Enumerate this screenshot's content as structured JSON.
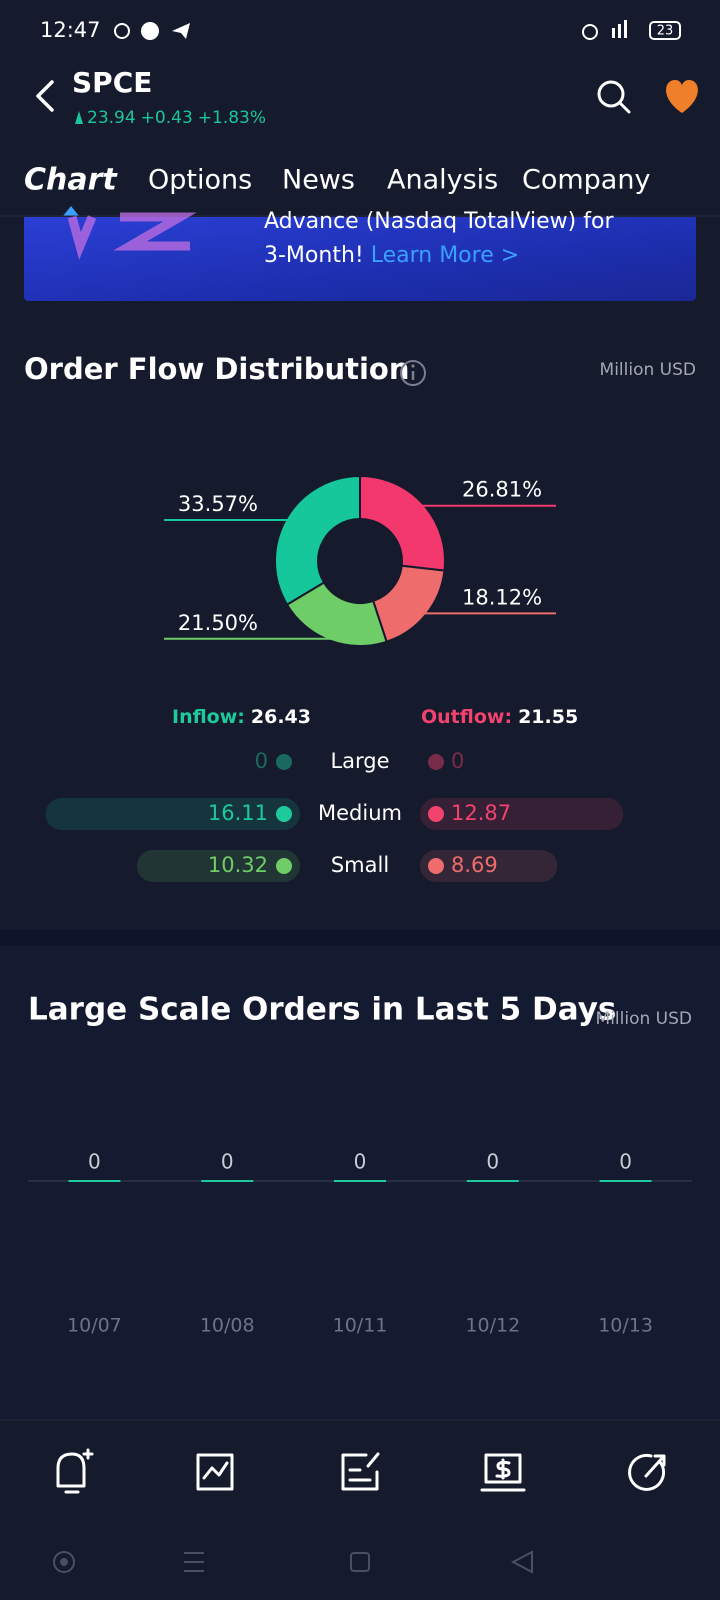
{
  "status_bar": {
    "time": "12:47",
    "battery": "23"
  },
  "header": {
    "symbol": "SPCE",
    "price": "23.94",
    "change": "+0.43",
    "change_percent": "+1.83%"
  },
  "tabs": [
    "Chart",
    "Options",
    "News",
    "Analysis",
    "Company"
  ],
  "banner": {
    "line1": "Advance (Nasdaq TotalView) for",
    "line2": "3-Month!",
    "link": "Learn More >"
  },
  "order_flow": {
    "title": "Order Flow Distribution",
    "unit": "Million USD",
    "chart": {
      "type": "donut",
      "values": [
        26.81,
        18.12,
        21.5,
        33.57
      ],
      "value_labels": [
        "26.81%",
        "18.12%",
        "21.50%",
        "33.57%"
      ],
      "colors": [
        "#f2386c",
        "#ee6c6c",
        "#6fcd67",
        "#15c79a"
      ]
    },
    "inflow": {
      "label": "Inflow:",
      "total": 26.43,
      "color": "#1ec99b"
    },
    "outflow": {
      "label": "Outflow:",
      "total": 21.55,
      "color": "#f2426e"
    },
    "rows": [
      {
        "label": "Large",
        "inflow": 0,
        "outflow": 0
      },
      {
        "label": "Medium",
        "inflow": 16.11,
        "outflow": 12.87
      },
      {
        "label": "Small",
        "inflow": 10.32,
        "outflow": 8.69
      }
    ]
  },
  "large_orders": {
    "title": "Large Scale Orders in Last 5 Days",
    "unit": "Million USD",
    "chart": {
      "type": "bar",
      "categories": [
        "10/07",
        "10/08",
        "10/11",
        "10/12",
        "10/13"
      ],
      "values": [
        0,
        0,
        0,
        0,
        0
      ],
      "color": "#1ec99b"
    }
  }
}
